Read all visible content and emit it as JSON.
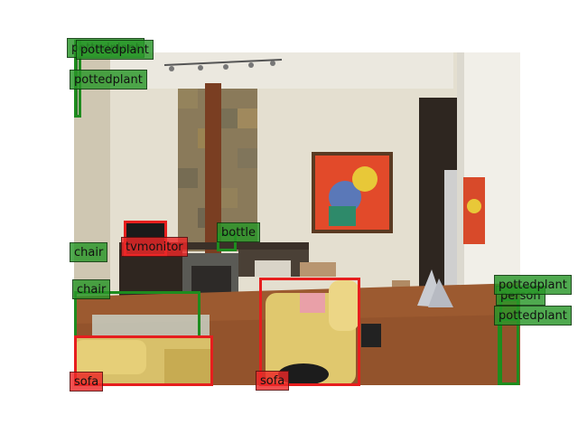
{
  "detections": [
    {
      "label": "pottedplant",
      "color": "green"
    },
    {
      "label": "pottedplant",
      "color": "green"
    },
    {
      "label": "pottedplant",
      "color": "green"
    },
    {
      "label": "chair",
      "color": "green"
    },
    {
      "label": "tvmonitor",
      "color": "red"
    },
    {
      "label": "bottle",
      "color": "green"
    },
    {
      "label": "chair",
      "color": "green"
    },
    {
      "label": "sofa",
      "color": "red"
    },
    {
      "label": "sofa",
      "color": "red"
    },
    {
      "label": "pottedplant",
      "color": "green"
    },
    {
      "label": "person",
      "color": "green"
    },
    {
      "label": "pottedplant",
      "color": "green"
    }
  ],
  "colors": {
    "green": "#1e8c1e",
    "red": "#e61e1e"
  }
}
